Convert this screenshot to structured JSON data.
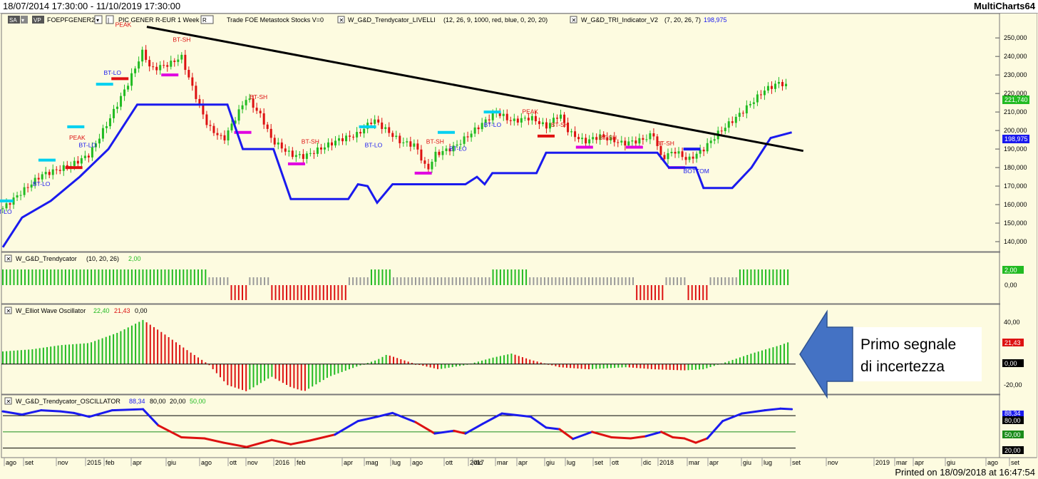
{
  "header": {
    "date_range": "18/07/2014 17:30:00 - 11/10/2019 17:30:00",
    "app_name": "MultiCharts64"
  },
  "footer": {
    "printed": "Printed on 18/09/2018 at 16:47:54"
  },
  "colors": {
    "background": "#fdfbe0",
    "up": "#22bb22",
    "down": "#dd1111",
    "level": "#1a1aee",
    "trend": "#000000"
  },
  "panes": {
    "price": {
      "sa_button": "SA",
      "vp_button": "VP",
      "symbol": "FOEPFGENER2",
      "symbol_desc": "PIC GENER R-EUR  1 Week",
      "r_button": "R",
      "trade_info": "Trade  FOE  Metastock  Stocks  V=0",
      "ind1_name": "W_G&D_Trendycator_LIVELLI",
      "ind1_params": "(12,  26,  9,  1000,  red,  blue,  0,  20,  20)",
      "ind2_name": "W_G&D_TRI_Indicator_V2",
      "ind2_params": "(7,  20,  26,  7)",
      "ind2_value": "198,975",
      "last_price": "221,740",
      "level_value": "198,975"
    },
    "trendycator": {
      "name": "W_G&D_Trendycator",
      "params": "(10,  20,  26)",
      "value": "2,00",
      "zero": "0,00"
    },
    "ewo": {
      "name": "W_Elliot Wave Oscillator",
      "v1": "22,40",
      "v2": "21,43",
      "v3": "0,00"
    },
    "osc": {
      "name": "W_G&D_Trendycator_OSCILLATOR",
      "v1": "88,34",
      "v2": "80,00",
      "v3": "20,00",
      "v4": "50,00"
    }
  },
  "annotation": {
    "line1": "Primo segnale",
    "line2": "di incertezza"
  },
  "x_axis": {
    "labels": [
      "ago",
      "set",
      "nov",
      "2015",
      "feb",
      "apr",
      "giu",
      "ago",
      "ott",
      "nov",
      "2016",
      "feb",
      "apr",
      "mag",
      "lug",
      "ago",
      "ott",
      "dic",
      "2017",
      "mar",
      "apr",
      "giu",
      "lug",
      "set",
      "ott",
      "dic",
      "2018",
      "mar",
      "apr",
      "giu",
      "lug",
      "set",
      "nov",
      "2019",
      "mar",
      "apr",
      "giu",
      "ago",
      "set"
    ]
  },
  "chart_data": [
    {
      "type": "candlestick",
      "title": "FOEPFGENER2 PIC GENER R-EUR 1 Week",
      "ylim": [
        135000,
        262000
      ],
      "y_ticks": [
        "140,000",
        "150,000",
        "160,000",
        "170,000",
        "180,000",
        "190,000",
        "200,000",
        "210,000",
        "220,000",
        "230,000",
        "240,000",
        "250,000"
      ],
      "close_path": [
        [
          2014.55,
          158000
        ],
        [
          2014.65,
          167000
        ],
        [
          2014.75,
          176000
        ],
        [
          2014.9,
          181000
        ],
        [
          2015.0,
          187000
        ],
        [
          2015.1,
          205000
        ],
        [
          2015.2,
          225000
        ],
        [
          2015.28,
          243000
        ],
        [
          2015.32,
          233000
        ],
        [
          2015.42,
          236000
        ],
        [
          2015.48,
          240000
        ],
        [
          2015.52,
          228000
        ],
        [
          2015.58,
          212000
        ],
        [
          2015.62,
          202000
        ],
        [
          2015.7,
          195000
        ],
        [
          2015.82,
          218000
        ],
        [
          2015.9,
          207000
        ],
        [
          2015.95,
          195000
        ],
        [
          2016.05,
          187000
        ],
        [
          2016.12,
          186000
        ],
        [
          2016.2,
          190000
        ],
        [
          2016.3,
          195000
        ],
        [
          2016.4,
          198000
        ],
        [
          2016.48,
          206000
        ],
        [
          2016.55,
          200000
        ],
        [
          2016.62,
          194000
        ],
        [
          2016.7,
          192000
        ],
        [
          2016.76,
          178000
        ],
        [
          2016.8,
          187000
        ],
        [
          2016.9,
          191000
        ],
        [
          2016.96,
          196000
        ],
        [
          2017.05,
          204000
        ],
        [
          2017.12,
          210000
        ],
        [
          2017.2,
          205000
        ],
        [
          2017.3,
          207000
        ],
        [
          2017.38,
          202000
        ],
        [
          2017.45,
          209000
        ],
        [
          2017.5,
          199000
        ],
        [
          2017.58,
          194000
        ],
        [
          2017.66,
          197000
        ],
        [
          2017.72,
          195000
        ],
        [
          2017.78,
          193000
        ],
        [
          2017.88,
          195000
        ],
        [
          2017.94,
          198000
        ],
        [
          2017.98,
          185000
        ],
        [
          2018.05,
          189000
        ],
        [
          2018.12,
          184000
        ],
        [
          2018.2,
          190000
        ],
        [
          2018.28,
          199000
        ],
        [
          2018.38,
          208000
        ],
        [
          2018.46,
          216000
        ],
        [
          2018.52,
          222000
        ],
        [
          2018.6,
          226000
        ],
        [
          2018.66,
          222000
        ]
      ],
      "trendline": [
        [
          2015.3,
          256000
        ],
        [
          2018.72,
          189000
        ]
      ],
      "level_line": [
        [
          2014.55,
          137000
        ],
        [
          2014.65,
          153000
        ],
        [
          2014.8,
          162000
        ],
        [
          2014.95,
          175000
        ],
        [
          2015.1,
          190000
        ],
        [
          2015.25,
          214000
        ],
        [
          2015.72,
          214000
        ],
        [
          2015.8,
          190000
        ],
        [
          2015.96,
          190000
        ],
        [
          2016.05,
          163000
        ],
        [
          2016.35,
          163000
        ],
        [
          2016.4,
          171000
        ],
        [
          2016.45,
          170000
        ],
        [
          2016.5,
          161000
        ],
        [
          2016.58,
          171000
        ],
        [
          2016.96,
          171000
        ],
        [
          2017.02,
          175000
        ],
        [
          2017.06,
          171000
        ],
        [
          2017.1,
          177000
        ],
        [
          2017.33,
          177000
        ],
        [
          2017.38,
          188000
        ],
        [
          2017.96,
          188000
        ],
        [
          2018.02,
          180000
        ],
        [
          2018.16,
          180000
        ],
        [
          2018.2,
          169000
        ],
        [
          2018.35,
          169000
        ],
        [
          2018.45,
          180000
        ],
        [
          2018.55,
          196000
        ],
        [
          2018.66,
          199000
        ]
      ],
      "labels": [
        {
          "text": "PEAK"
        },
        {
          "text": "BT-SH"
        },
        {
          "text": "BT-LO"
        },
        {
          "text": "BOTTOM"
        }
      ]
    },
    {
      "type": "bar",
      "title": "W_G&D_Trendycator",
      "ylim": [
        -2,
        2
      ],
      "y_ticks": [
        "2,00",
        "0,00"
      ]
    },
    {
      "type": "bar",
      "title": "W_Elliot Wave Oscillator",
      "ylim": [
        -28,
        48
      ],
      "y_ticks": [
        "40,00",
        "0,00",
        "-20,00"
      ],
      "values": [
        [
          2014.55,
          12
        ],
        [
          2014.7,
          14
        ],
        [
          2014.85,
          18
        ],
        [
          2015.0,
          20
        ],
        [
          2015.15,
          30
        ],
        [
          2015.28,
          42
        ],
        [
          2015.38,
          30
        ],
        [
          2015.52,
          12
        ],
        [
          2015.62,
          0
        ],
        [
          2015.72,
          -20
        ],
        [
          2015.82,
          -26
        ],
        [
          2015.95,
          -12
        ],
        [
          2016.05,
          -22
        ],
        [
          2016.12,
          -26
        ],
        [
          2016.25,
          -12
        ],
        [
          2016.4,
          -2
        ],
        [
          2016.5,
          4
        ],
        [
          2016.55,
          9
        ],
        [
          2016.7,
          0
        ],
        [
          2016.82,
          -5
        ],
        [
          2016.96,
          -1
        ],
        [
          2017.1,
          6
        ],
        [
          2017.2,
          10
        ],
        [
          2017.3,
          4
        ],
        [
          2017.45,
          -3
        ],
        [
          2017.6,
          -5
        ],
        [
          2017.8,
          -3
        ],
        [
          2017.94,
          -5
        ],
        [
          2018.1,
          -6
        ],
        [
          2018.2,
          -5
        ],
        [
          2018.32,
          2
        ],
        [
          2018.45,
          10
        ],
        [
          2018.6,
          18
        ],
        [
          2018.66,
          22
        ]
      ]
    },
    {
      "type": "line",
      "title": "W_G&D_Trendycator_OSCILLATOR",
      "ylim": [
        5,
        100
      ],
      "y_ticks": [
        "80,00",
        "50,00",
        "20,00"
      ],
      "values": [
        [
          2014.55,
          88
        ],
        [
          2014.65,
          82
        ],
        [
          2014.75,
          90
        ],
        [
          2014.85,
          88
        ],
        [
          2014.92,
          85
        ],
        [
          2015.0,
          78
        ],
        [
          2015.12,
          90
        ],
        [
          2015.28,
          92
        ],
        [
          2015.36,
          62
        ],
        [
          2015.48,
          40
        ],
        [
          2015.6,
          38
        ],
        [
          2015.7,
          30
        ],
        [
          2015.82,
          22
        ],
        [
          2015.95,
          35
        ],
        [
          2016.05,
          27
        ],
        [
          2016.15,
          34
        ],
        [
          2016.28,
          45
        ],
        [
          2016.4,
          70
        ],
        [
          2016.5,
          78
        ],
        [
          2016.58,
          85
        ],
        [
          2016.7,
          68
        ],
        [
          2016.8,
          47
        ],
        [
          2016.9,
          52
        ],
        [
          2016.96,
          47
        ],
        [
          2017.05,
          65
        ],
        [
          2017.15,
          84
        ],
        [
          2017.3,
          78
        ],
        [
          2017.38,
          58
        ],
        [
          2017.45,
          55
        ],
        [
          2017.52,
          37
        ],
        [
          2017.62,
          50
        ],
        [
          2017.72,
          40
        ],
        [
          2017.82,
          38
        ],
        [
          2017.9,
          42
        ],
        [
          2017.98,
          50
        ],
        [
          2018.04,
          40
        ],
        [
          2018.1,
          38
        ],
        [
          2018.16,
          30
        ],
        [
          2018.22,
          38
        ],
        [
          2018.3,
          70
        ],
        [
          2018.4,
          84
        ],
        [
          2018.52,
          90
        ],
        [
          2018.6,
          93
        ],
        [
          2018.66,
          92
        ]
      ]
    }
  ]
}
